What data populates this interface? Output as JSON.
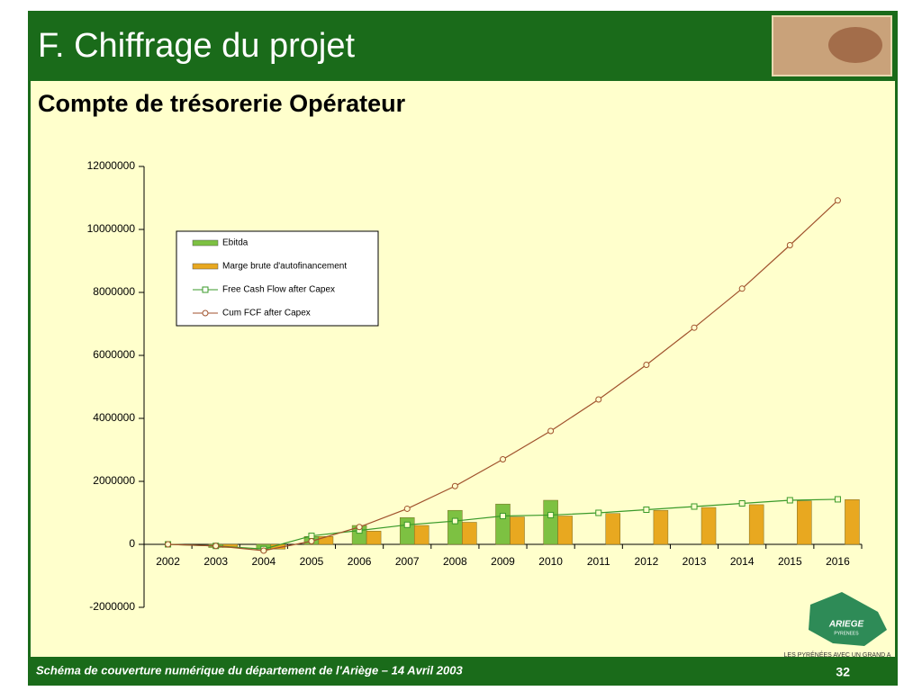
{
  "slide": {
    "title": "F. Chiffrage du projet",
    "footer": "Schéma de couverture numérique du département de l'Ariège – 14 Avril 2003",
    "page": "32"
  },
  "logo": {
    "name": "ARIEGE",
    "sub": "PYRENEES",
    "tagline": "LES PYRÉNÉES AVEC UN GRAND A"
  },
  "chart_data": {
    "type": "bar",
    "title": "Compte de trésorerie Opérateur",
    "categories": [
      "2002",
      "2003",
      "2004",
      "2005",
      "2006",
      "2007",
      "2008",
      "2009",
      "2010",
      "2011",
      "2012",
      "2013",
      "2014",
      "2015",
      "2016"
    ],
    "series": [
      {
        "name": "Ebitda",
        "type": "bar",
        "color": "#7dc142",
        "values": [
          0,
          -100000,
          -150000,
          250000,
          600000,
          850000,
          1080000,
          1280000,
          1400000,
          null,
          null,
          null,
          null,
          null,
          null
        ]
      },
      {
        "name": "Marge brute d'autofinancement",
        "type": "bar",
        "color": "#e8a820",
        "values": [
          0,
          -100000,
          -150000,
          250000,
          420000,
          600000,
          700000,
          870000,
          900000,
          980000,
          1080000,
          1170000,
          1260000,
          1380000,
          1420000
        ]
      },
      {
        "name": "Free Cash Flow  after Capex",
        "type": "line",
        "marker": "square",
        "color": "#3a9a2a",
        "values": [
          0,
          -50000,
          -150000,
          270000,
          440000,
          620000,
          740000,
          900000,
          930000,
          1000000,
          1100000,
          1200000,
          1300000,
          1400000,
          1430000
        ]
      },
      {
        "name": "Cum FCF after Capex",
        "type": "line",
        "marker": "circle",
        "color": "#a0522d",
        "values": [
          0,
          -50000,
          -200000,
          100000,
          550000,
          1130000,
          1850000,
          2700000,
          3600000,
          4600000,
          5700000,
          6880000,
          8120000,
          9500000,
          10920000
        ]
      }
    ],
    "ylim": [
      -2000000,
      12000000
    ],
    "yticks": [
      -2000000,
      0,
      2000000,
      4000000,
      6000000,
      8000000,
      10000000,
      12000000
    ],
    "legend": "top-left"
  }
}
